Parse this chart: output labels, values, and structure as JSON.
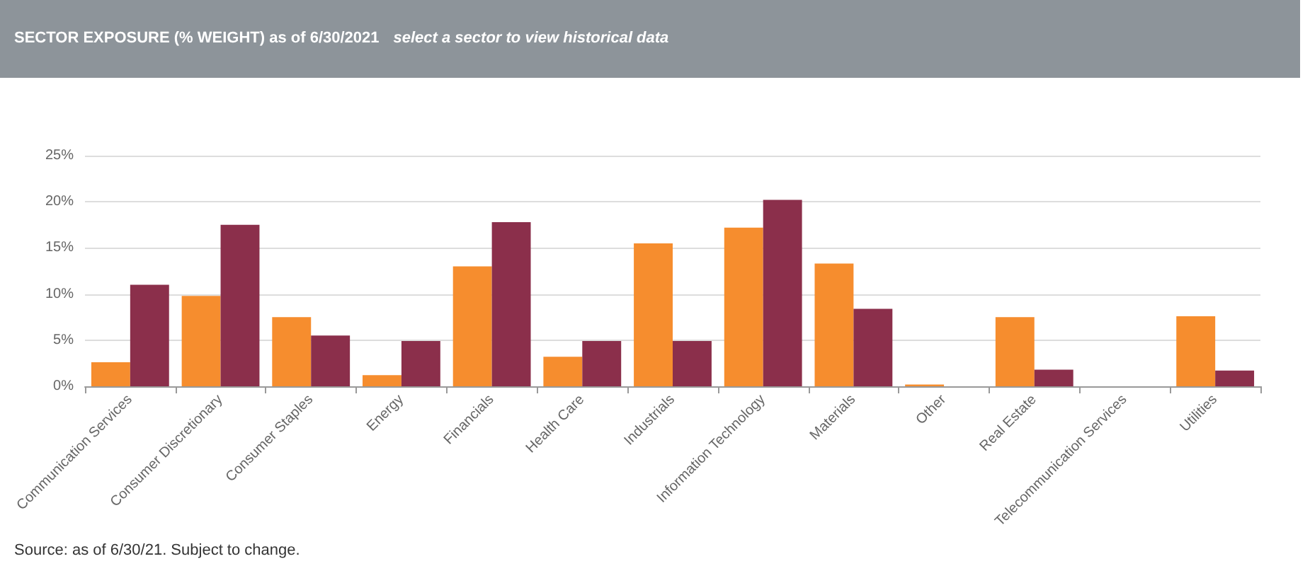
{
  "chart_data": {
    "type": "bar",
    "title": "SECTOR EXPOSURE (% WEIGHT) as of 6/30/2021",
    "subtitle": "select a sector to view historical data",
    "categories": [
      "Communication Services",
      "Consumer Discretionary",
      "Consumer Staples",
      "Energy",
      "Financials",
      "Health Care",
      "Industrials",
      "Information Technology",
      "Materials",
      "Other",
      "Real Estate",
      "Telecommunication Services",
      "Utilities"
    ],
    "series": [
      {
        "color": "#f68d2e",
        "values": [
          2.6,
          9.8,
          7.5,
          1.2,
          13.0,
          3.2,
          15.5,
          17.2,
          13.3,
          0.2,
          7.5,
          0,
          7.6
        ]
      },
      {
        "color": "#8b2f4b",
        "values": [
          11.0,
          17.5,
          5.5,
          4.9,
          17.8,
          4.9,
          4.9,
          20.2,
          8.4,
          0,
          1.8,
          0,
          1.7
        ]
      }
    ],
    "ylim": [
      0,
      25
    ],
    "yticks": [
      {
        "value": 0,
        "label": "0%"
      },
      {
        "value": 5,
        "label": "5%"
      },
      {
        "value": 10,
        "label": "10%"
      },
      {
        "value": 15,
        "label": "15%"
      },
      {
        "value": 20,
        "label": "20%"
      },
      {
        "value": 25,
        "label": "25%"
      }
    ],
    "grid": "y",
    "annotations": [
      "Source: as of 6/30/21. Subject to change."
    ]
  }
}
